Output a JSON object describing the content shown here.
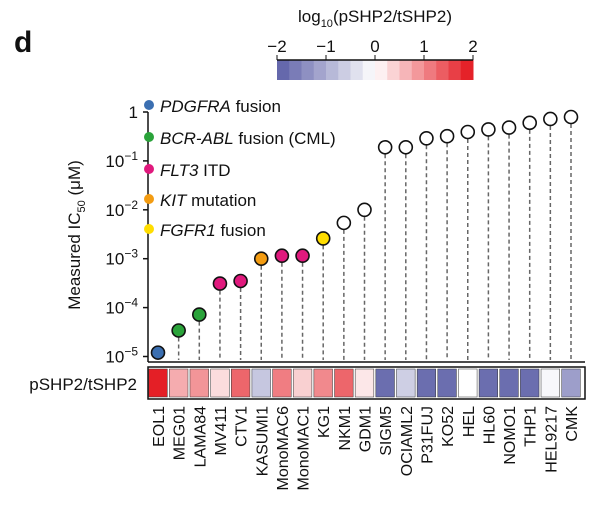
{
  "panel_label": "d",
  "chart_data": {
    "type": "scatter",
    "ylabel_main": "Measured IC",
    "ylabel_sub": "50",
    "ylabel_unit": " (μM)",
    "yscale": "log",
    "ylim": [
      1e-05,
      1
    ],
    "yticks": [
      {
        "value": 1,
        "base": "1",
        "exp": ""
      },
      {
        "value": 0.1,
        "base": "10",
        "exp": "−1"
      },
      {
        "value": 0.01,
        "base": "10",
        "exp": "−2"
      },
      {
        "value": 0.001,
        "base": "10",
        "exp": "−3"
      },
      {
        "value": 0.0001,
        "base": "10",
        "exp": "−4"
      },
      {
        "value": 1e-05,
        "base": "10",
        "exp": "−5"
      }
    ],
    "categories": [
      "EOL1",
      "MEG01",
      "LAMA84",
      "MV411",
      "CTV1",
      "KASUMI1",
      "MonoMAC6",
      "MonoMAC1",
      "KG1",
      "NKM1",
      "GDM1",
      "SIGM5",
      "OCIAML2",
      "P31FUJ",
      "KO52",
      "HEL",
      "HL60",
      "NOMO1",
      "THP1",
      "HEL9217",
      "CMK"
    ],
    "ic50": [
      1.2e-05,
      3.4e-05,
      7.2e-05,
      0.00031,
      0.00035,
      0.001,
      0.00115,
      0.00115,
      0.0026,
      0.0054,
      0.01,
      0.19,
      0.19,
      0.29,
      0.32,
      0.39,
      0.44,
      0.48,
      0.6,
      0.72,
      0.79
    ],
    "group": [
      "PDGFRA",
      "BCR-ABL",
      "BCR-ABL",
      "FLT3",
      "FLT3",
      "KIT",
      "FLT3",
      "FLT3",
      "FGFR1",
      "none",
      "none",
      "none",
      "none",
      "none",
      "none",
      "none",
      "none",
      "none",
      "none",
      "none",
      "none"
    ],
    "legend": [
      {
        "key": "PDGFRA",
        "italic": "PDGFRA",
        "rest": " fusion",
        "color": "#3b6fb1"
      },
      {
        "key": "BCR-ABL",
        "italic": "BCR-ABL",
        "rest": " fusion (CML)",
        "color": "#2aa33a"
      },
      {
        "key": "FLT3",
        "italic": "FLT3",
        "rest": " ITD",
        "color": "#e0197d"
      },
      {
        "key": "KIT",
        "italic": "KIT",
        "rest": " mutation",
        "color": "#f39c12"
      },
      {
        "key": "FGFR1",
        "italic": "FGFR1",
        "rest": " fusion",
        "color": "#ffdd00"
      }
    ],
    "legend_placement": "top-left",
    "heatmap": {
      "row_label": "pSHP2/tSHP2",
      "log10_values": [
        1.9,
        0.7,
        0.9,
        0.3,
        1.3,
        -0.7,
        1.1,
        0.4,
        1.0,
        1.3,
        0.2,
        -1.8,
        -0.6,
        -1.8,
        -1.8,
        0.0,
        -1.8,
        -1.8,
        -1.8,
        -0.1,
        -1.2
      ]
    },
    "colorbar": {
      "title_main": "log",
      "title_sub": "10",
      "title_rest": "(pSHP2/tSHP2)",
      "range": [
        -2,
        2
      ],
      "ticks": [
        "−2",
        "−1",
        "0",
        "1",
        "2"
      ],
      "low_color": "#5b5ea6",
      "mid_color": "#ffffff",
      "high_color": "#e3131b"
    }
  }
}
